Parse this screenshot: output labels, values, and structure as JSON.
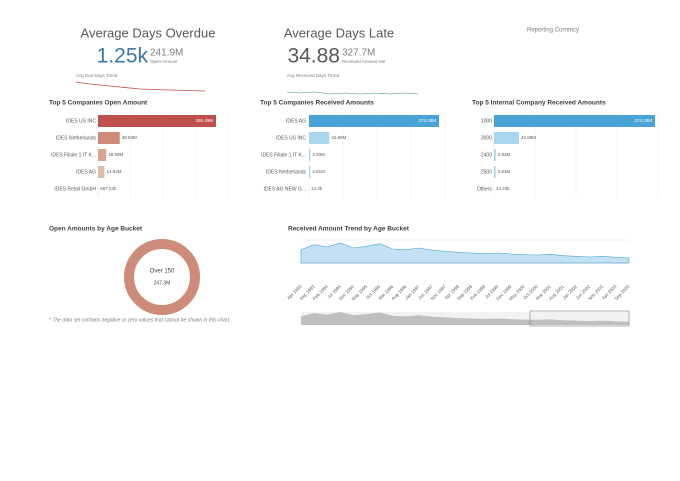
{
  "kpis": [
    {
      "title": "Average Days Overdue",
      "value": "1.25k",
      "secondary_value": "241.9M",
      "secondary_label": "Open Amount",
      "trend_label": "Avg Due Days Trend"
    },
    {
      "title": "Average Days Late",
      "value": "34.88",
      "secondary_value": "327.7M",
      "secondary_label": "Received Amount Net",
      "trend_label": "Avg Received Days Trend"
    }
  ],
  "reporting_currency": "Reporting Currency",
  "chart_data": [
    {
      "type": "bar",
      "title": "Top 5 Companies Open Amount",
      "categories": [
        "IDES US INC",
        "IDES Netherlands",
        "IDES Filiale 1 IT K...",
        "IDES AG",
        "IDES Retail GmbH"
      ],
      "values": [
        265.49,
        48.93,
        18.59,
        14.52,
        0.68723
      ],
      "value_labels": [
        "265.49M",
        "48.93M",
        "18.59M",
        "14.52M",
        "687.23k"
      ],
      "colors": [
        "#c0504d",
        "#cf8a79",
        "#d6a695",
        "#dbbfae",
        "#e3d6ca"
      ]
    },
    {
      "type": "bar",
      "title": "Top 5 Companies Received Amounts",
      "categories": [
        "IDES AG",
        "IDES US INC",
        "IDES Filiale 1 IT K...",
        "IDES Netherlands",
        "IDES AG NEW G..."
      ],
      "values": [
        274.28,
        42.69,
        2.93,
        2.81,
        0.0143
      ],
      "value_labels": [
        "274.28M",
        "42.69M",
        "2.93M",
        "2.81M",
        "14.3k"
      ],
      "colors": [
        "#4aa3d6",
        "#a8d6ef",
        "#a8d6ef",
        "#a8d6ef",
        "#a8d6ef"
      ]
    },
    {
      "type": "bar",
      "title": "Top 5 Internal Company Received Amounts",
      "categories": [
        "1000",
        "3000",
        "2400",
        "2500",
        "Others"
      ],
      "values": [
        274.28,
        42.69,
        2.93,
        2.81,
        0.02423
      ],
      "value_labels": [
        "274.28M",
        "42.69M",
        "2.93M",
        "2.81M",
        "24.23k"
      ],
      "colors": [
        "#4aa3d6",
        "#a8d6ef",
        "#a8d6ef",
        "#a8d6ef",
        "#a8d6ef"
      ]
    },
    {
      "type": "donut",
      "title": "Open Amounts by Age Bucket",
      "categories": [
        "Over 150"
      ],
      "values": [
        247.3
      ],
      "value_labels": [
        "247.3M"
      ],
      "color": "#cd8c7a",
      "note": "* The data set contains negative or zero values that cannot be shown in this chart."
    },
    {
      "type": "area",
      "title": "Received Amount Trend by Age Bucket",
      "categories": [
        "Apr 1993",
        "Sep 1993",
        "Feb 1994",
        "Jul 1994",
        "Dec 1994",
        "May 1995",
        "Oct 1995",
        "Mar 1996",
        "Aug 1996",
        "Jan 1997",
        "Jun 1997",
        "Nov 1997",
        "Apr 1998",
        "Sep 1998",
        "Feb 1999",
        "Jul 1999",
        "Dec 1999",
        "May 2000",
        "Oct 2000",
        "Mar 2001",
        "Aug 2001",
        "Jan 2002",
        "Jun 2002",
        "Nov 2002",
        "Apr 2003",
        "Sep 2003"
      ],
      "values": [
        40,
        55,
        48,
        60,
        45,
        50,
        58,
        42,
        40,
        45,
        38,
        35,
        32,
        30,
        28,
        30,
        27,
        25,
        24,
        26,
        22,
        20,
        18,
        20,
        17,
        15
      ],
      "color": "#4aa3d6"
    }
  ]
}
